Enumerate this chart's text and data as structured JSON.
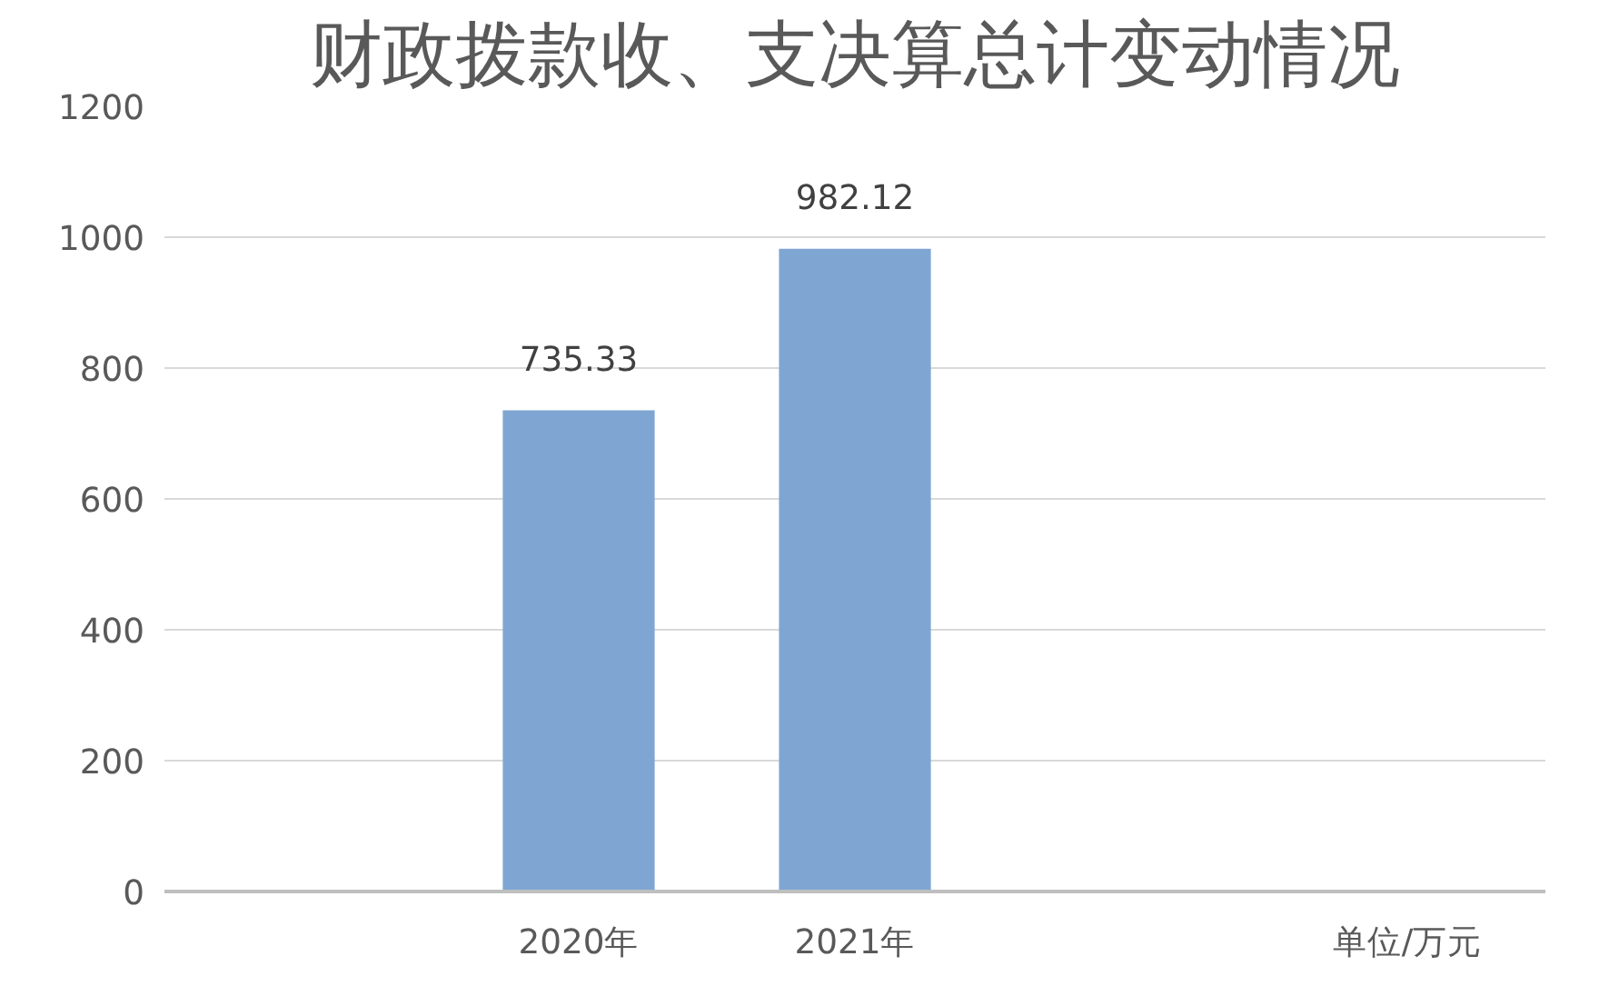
{
  "chart_data": {
    "type": "bar",
    "title": "财政拨款收、支决算总计变动情况",
    "categories": [
      null,
      "2020年",
      "2021年",
      null,
      "单位/万元"
    ],
    "values": [
      null,
      735.33,
      982.12,
      null,
      null
    ],
    "color": "#7fa6d3",
    "ylim": [
      0,
      1200
    ],
    "yticks": [
      0,
      200,
      400,
      600,
      800,
      1000,
      1200
    ],
    "grid": "y",
    "data_labels": true
  }
}
